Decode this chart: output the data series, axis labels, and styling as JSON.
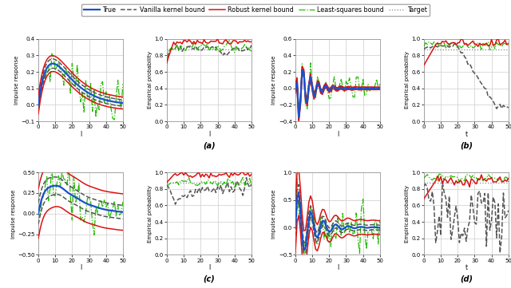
{
  "legend_entries": [
    "True",
    "Vanilla kernel bound",
    "Robust kernel bound",
    "Least-squares bound",
    "Target"
  ],
  "c_true": "#1a50cc",
  "c_vanilla": "#555555",
  "c_robust": "#dd1111",
  "c_ls": "#22bb00",
  "c_target": "#888888",
  "prob_target": 0.875,
  "panel_labels": [
    "(a)",
    "(b)",
    "(c)",
    "(d)"
  ],
  "bg_color": "#ffffff",
  "grid_color": "#cccccc"
}
